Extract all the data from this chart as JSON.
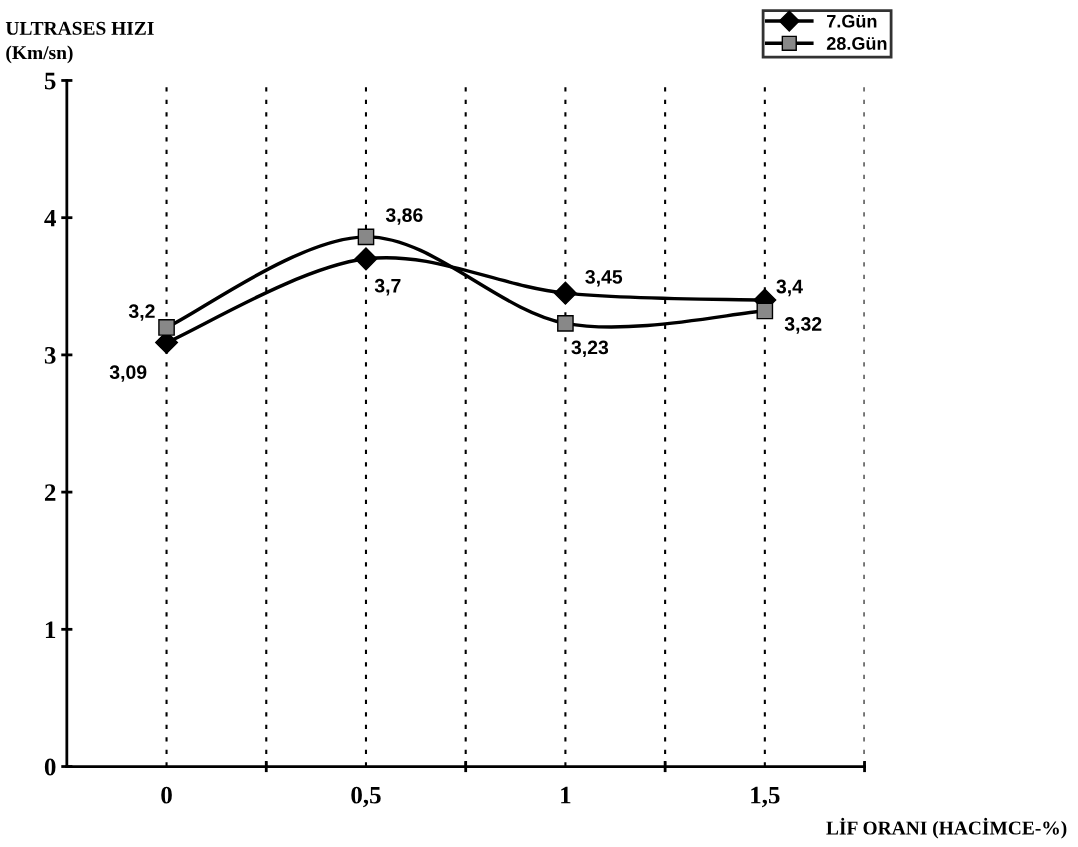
{
  "chart_data": {
    "type": "line",
    "ylabel": "ULTRASES HIZI\n(Km/sn)",
    "xlabel": "LİF ORANI (HACİMCE-%)",
    "categories": [
      "0",
      "0,5",
      "1",
      "1,5"
    ],
    "series": [
      {
        "name": "7.Gün",
        "color": "#000000",
        "marker": "diamond",
        "values": [
          3.09,
          3.7,
          3.45,
          3.4
        ],
        "value_labels": [
          "3,09",
          "3,7",
          "3,45",
          "3,4"
        ]
      },
      {
        "name": "28.Gün",
        "color": "#000000",
        "marker": "square",
        "values": [
          3.2,
          3.86,
          3.23,
          3.32
        ],
        "value_labels": [
          "3,2",
          "3,86",
          "3,23",
          "3,32"
        ]
      }
    ],
    "ylim": [
      0,
      5
    ],
    "yticks": [
      0,
      1,
      2,
      3,
      4,
      5
    ],
    "grid": "x",
    "legend": "top right",
    "line_style": "solid"
  }
}
